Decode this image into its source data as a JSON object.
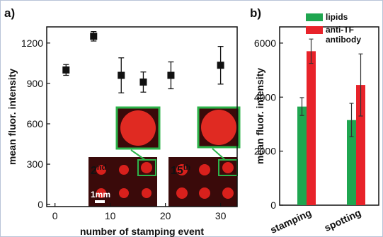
{
  "chart_data": [
    {
      "type": "scatter",
      "panel_label": "a)",
      "y_label": "mean fluor. intensity",
      "x_label": "number of stamping event",
      "x": [
        2,
        7,
        12,
        16,
        21,
        30
      ],
      "values": [
        1000,
        1250,
        960,
        910,
        960,
        1035
      ],
      "errors": [
        40,
        35,
        130,
        75,
        100,
        140
      ],
      "color": "#111111",
      "xlim": [
        -1.5,
        33
      ],
      "ylim": [
        -15,
        1320
      ],
      "xticks": [
        0,
        10,
        20,
        30
      ],
      "yticks": [
        0,
        300,
        600,
        900,
        1200
      ],
      "insets": [
        {
          "number": "2",
          "suffix": "nd"
        },
        {
          "number": "15",
          "suffix": "th"
        }
      ],
      "scale_bar": "1mm"
    },
    {
      "type": "bar",
      "panel_label": "b)",
      "y_label": "mean fluor. intensity",
      "categories": [
        "stamping",
        "spotting"
      ],
      "series": [
        {
          "name": "lipids",
          "color": "#1fa650",
          "values": [
            3650,
            3150
          ],
          "errors": [
            330,
            620
          ]
        },
        {
          "name": "anti-TF antibody",
          "color": "#e8232a",
          "values": [
            5700,
            4450
          ],
          "errors": [
            450,
            1150
          ]
        }
      ],
      "ylim": [
        0,
        6600
      ],
      "yticks": [
        0,
        2000,
        4000,
        6000
      ],
      "legend": "upper left"
    }
  ]
}
